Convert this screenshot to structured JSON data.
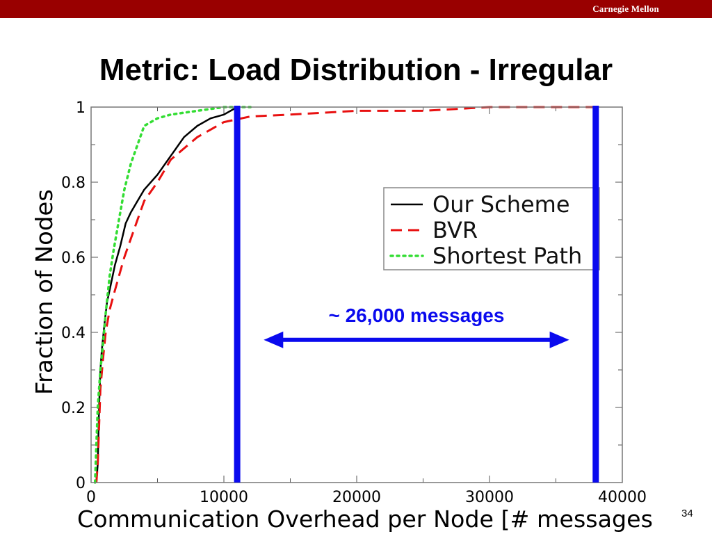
{
  "header": {
    "brand": "Carnegie Mellon",
    "colors": {
      "bar": "#990000",
      "brand_text": "#ffffff"
    }
  },
  "slide": {
    "title": "Metric: Load Distribution - Irregular",
    "page_number": "34"
  },
  "chart_data": {
    "type": "line",
    "title": "",
    "xlabel": "Communication Overhead per Node [# messages",
    "ylabel": "Fraction of Nodes",
    "xlim": [
      0,
      40000
    ],
    "ylim": [
      0,
      1
    ],
    "x_ticks": [
      0,
      10000,
      20000,
      30000,
      40000
    ],
    "x_tick_labels": [
      "0",
      "10000",
      "20000",
      "30000",
      "40000"
    ],
    "y_ticks": [
      0,
      0.2,
      0.4,
      0.6,
      0.8,
      1
    ],
    "y_tick_labels": [
      "0",
      "0.2",
      "0.4",
      "0.6",
      "0.8",
      "1"
    ],
    "grid": false,
    "legend_position": "right",
    "series": [
      {
        "name": "Our Scheme",
        "color": "#000000",
        "dash": "solid",
        "x": [
          400,
          500,
          600,
          700,
          800,
          1000,
          1200,
          1500,
          1800,
          2200,
          2600,
          3000,
          3500,
          4000,
          5000,
          6000,
          7000,
          8000,
          9000,
          10000,
          11000
        ],
        "y": [
          0,
          0.05,
          0.2,
          0.3,
          0.35,
          0.42,
          0.48,
          0.53,
          0.58,
          0.63,
          0.69,
          0.72,
          0.75,
          0.78,
          0.82,
          0.87,
          0.92,
          0.95,
          0.97,
          0.98,
          1.0
        ]
      },
      {
        "name": "BVR",
        "color": "#e81010",
        "dash": "dashed",
        "x": [
          400,
          500,
          600,
          700,
          900,
          1100,
          1400,
          1700,
          2100,
          2500,
          3000,
          3500,
          4000,
          5000,
          6000,
          7000,
          8000,
          9000,
          10000,
          12000,
          15000,
          20000,
          25000,
          30000,
          35000,
          38000
        ],
        "y": [
          0,
          0.05,
          0.15,
          0.25,
          0.33,
          0.4,
          0.46,
          0.5,
          0.55,
          0.6,
          0.65,
          0.7,
          0.75,
          0.8,
          0.86,
          0.89,
          0.92,
          0.94,
          0.96,
          0.975,
          0.98,
          0.99,
          0.99,
          1.0,
          1.0,
          1.0
        ]
      },
      {
        "name": "Shortest Path",
        "color": "#33dd33",
        "dash": "dotted",
        "x": [
          300,
          400,
          500,
          700,
          900,
          1100,
          1400,
          1700,
          2100,
          2500,
          3000,
          4000,
          5000,
          6000,
          8000,
          10000,
          12000
        ],
        "y": [
          0,
          0.1,
          0.2,
          0.3,
          0.37,
          0.45,
          0.55,
          0.62,
          0.7,
          0.78,
          0.85,
          0.95,
          0.97,
          0.98,
          0.99,
          1.0,
          1.0
        ]
      }
    ],
    "markers": [
      {
        "type": "vertical_line",
        "x": 11000,
        "color": "#0a0aee"
      },
      {
        "type": "vertical_line",
        "x": 38000,
        "color": "#0a0aee"
      }
    ],
    "annotation": {
      "text": "~ 26,000 messages",
      "x_from": 13000,
      "x_to": 36000,
      "y": 0.38,
      "color": "#0a0aee"
    }
  }
}
